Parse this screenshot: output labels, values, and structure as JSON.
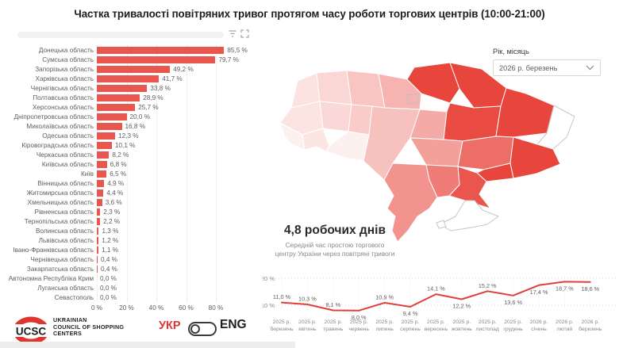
{
  "title": "Частка тривалості повітряних тривог протягом часу роботи торгових центрів (10:00-21:00)",
  "colors": {
    "bar": "#e8564e",
    "map_max": "#e8463d",
    "line": "#e04038",
    "accent_red": "#e0342e",
    "text_gray": "#605e5c"
  },
  "icons": {
    "filter": "filter-icon",
    "focus_mode": "focus-mode-icon",
    "dropdown_chevron": "chevron-down-icon"
  },
  "slicer": {
    "label": "Рік, місяць",
    "value": "2026 р. березень"
  },
  "bar_chart": {
    "x_ticks": [
      "0 %",
      "20 %",
      "40 %",
      "60 %",
      "80 %"
    ],
    "items": [
      {
        "key": "donetsk",
        "label": "Донецька область",
        "value": 85.5,
        "display": "85,5 %"
      },
      {
        "key": "sumy",
        "label": "Сумська область",
        "value": 79.7,
        "display": "79,7 %"
      },
      {
        "key": "zaporizhzhia",
        "label": "Запорізька область",
        "value": 49.2,
        "display": "49,2 %"
      },
      {
        "key": "kharkiv",
        "label": "Харківська область",
        "value": 41.7,
        "display": "41,7 %"
      },
      {
        "key": "chernihiv",
        "label": "Чернігівська область",
        "value": 33.8,
        "display": "33,8 %"
      },
      {
        "key": "poltava",
        "label": "Полтавська область",
        "value": 28.9,
        "display": "28,9 %"
      },
      {
        "key": "kherson",
        "label": "Херсонська область",
        "value": 25.7,
        "display": "25,7 %"
      },
      {
        "key": "dnipro",
        "label": "Дніпропетровська область",
        "value": 20.0,
        "display": "20,0 %"
      },
      {
        "key": "mykolaiv",
        "label": "Миколаївська область",
        "value": 16.8,
        "display": "16,8 %"
      },
      {
        "key": "odesa",
        "label": "Одеська область",
        "value": 12.3,
        "display": "12,3 %"
      },
      {
        "key": "kirovohrad",
        "label": "Кіровоградська область",
        "value": 10.1,
        "display": "10,1 %"
      },
      {
        "key": "cherkasy",
        "label": "Черкаська область",
        "value": 8.2,
        "display": "8,2 %"
      },
      {
        "key": "kyivobl",
        "label": "Київська область",
        "value": 6.8,
        "display": "6,8 %"
      },
      {
        "key": "kyiv",
        "label": "Київ",
        "value": 6.5,
        "display": "6,5 %"
      },
      {
        "key": "vinnytsia",
        "label": "Вінницька область",
        "value": 4.9,
        "display": "4,9 %"
      },
      {
        "key": "zhytomyr",
        "label": "Житомирська область",
        "value": 4.4,
        "display": "4,4 %"
      },
      {
        "key": "khmelnytskyi",
        "label": "Хмельницька область",
        "value": 3.6,
        "display": "3,6 %"
      },
      {
        "key": "rivne",
        "label": "Рівненська область",
        "value": 2.3,
        "display": "2,3 %"
      },
      {
        "key": "ternopil",
        "label": "Тернопільська область",
        "value": 2.2,
        "display": "2,2 %"
      },
      {
        "key": "volyn",
        "label": "Волинська область",
        "value": 1.3,
        "display": "1,3 %"
      },
      {
        "key": "lviv",
        "label": "Львівська область",
        "value": 1.2,
        "display": "1,2 %"
      },
      {
        "key": "ivanofrankivsk",
        "label": "Івано-Франківська область",
        "value": 1.1,
        "display": "1,1 %"
      },
      {
        "key": "chernivtsi",
        "label": "Чернівецька область",
        "value": 0.4,
        "display": "0,4 %"
      },
      {
        "key": "zakarpattia",
        "label": "Закарпатська область",
        "value": 0.4,
        "display": "0,4 %"
      },
      {
        "key": "crimea",
        "label": "Автономна Республіка Крим",
        "value": 0.0,
        "display": "0,0 %"
      },
      {
        "key": "luhansk",
        "label": "Луганська область",
        "value": 0.0,
        "display": "0,0 %"
      },
      {
        "key": "sevastopol",
        "label": "Севастополь",
        "value": 0.0,
        "display": "0,0 %"
      }
    ]
  },
  "map_note": {
    "headline": "4,8 робочих днів",
    "line1": "Середній час простою торгового",
    "line2": "центру України через повітряні тривоги"
  },
  "line_chart": {
    "y_ticks": [
      "20 %",
      "10 %"
    ],
    "points": [
      {
        "year": "2025 р.",
        "month": "березень",
        "value": 11.0,
        "display": "11,0 %",
        "label_pos": "above"
      },
      {
        "year": "2025 р.",
        "month": "квітень",
        "value": 10.3,
        "display": "10,3 %",
        "label_pos": "above"
      },
      {
        "year": "2025 р.",
        "month": "травень",
        "value": 8.1,
        "display": "8,1 %",
        "label_pos": "above"
      },
      {
        "year": "2025 р.",
        "month": "червень",
        "value": 8.0,
        "display": "8,0 %",
        "label_pos": "below"
      },
      {
        "year": "2025 р.",
        "month": "липень",
        "value": 10.9,
        "display": "10,9 %",
        "label_pos": "above"
      },
      {
        "year": "2025 р.",
        "month": "серпень",
        "value": 9.4,
        "display": "9,4 %",
        "label_pos": "below"
      },
      {
        "year": "2025 р.",
        "month": "вересень",
        "value": 14.1,
        "display": "14,1 %",
        "label_pos": "above"
      },
      {
        "year": "2025 р.",
        "month": "жовтень",
        "value": 12.2,
        "display": "12,2 %",
        "label_pos": "below"
      },
      {
        "year": "2025 р.",
        "month": "листопад",
        "value": 15.2,
        "display": "15,2 %",
        "label_pos": "above"
      },
      {
        "year": "2025 р.",
        "month": "грудень",
        "value": 13.6,
        "display": "13,6 %",
        "label_pos": "below"
      },
      {
        "year": "2026 р.",
        "month": "січень",
        "value": 17.4,
        "display": "17,4 %",
        "label_pos": "below"
      },
      {
        "year": "2026 р.",
        "month": "лютий",
        "value": 18.7,
        "display": "18,7 %",
        "label_pos": "below"
      },
      {
        "year": "2026 р.",
        "month": "березень",
        "value": 18.6,
        "display": "18,6 %",
        "label_pos": "below"
      }
    ]
  },
  "footer": {
    "logo_abbr": "UCSC",
    "logo_lines": [
      "UKRAINIAN",
      "COUNCIL OF SHOPPING",
      "CENTERS"
    ],
    "lang_ukr": "УКР",
    "lang_eng": "ENG"
  },
  "chart_data": [
    {
      "type": "bar",
      "orientation": "horizontal",
      "title": "Частка тривалості повітряних тривог протягом часу роботи торгових центрів (10:00-21:00)",
      "categories": [
        "Донецька область",
        "Сумська область",
        "Запорізька область",
        "Харківська область",
        "Чернігівська область",
        "Полтавська область",
        "Херсонська область",
        "Дніпропетровська область",
        "Миколаївська область",
        "Одеська область",
        "Кіровоградська область",
        "Черкаська область",
        "Київська область",
        "Київ",
        "Вінницька область",
        "Житомирська область",
        "Хмельницька область",
        "Рівненська область",
        "Тернопільська область",
        "Волинська область",
        "Львівська область",
        "Івано-Франківська область",
        "Чернівецька область",
        "Закарпатська область",
        "Автономна Республіка Крим",
        "Луганська область",
        "Севастополь"
      ],
      "values": [
        85.5,
        79.7,
        49.2,
        41.7,
        33.8,
        28.9,
        25.7,
        20.0,
        16.8,
        12.3,
        10.1,
        8.2,
        6.8,
        6.5,
        4.9,
        4.4,
        3.6,
        2.3,
        2.2,
        1.3,
        1.2,
        1.1,
        0.4,
        0.4,
        0.0,
        0.0,
        0.0
      ],
      "unit": "%",
      "xlabel": "",
      "ylabel": "",
      "x_ticks": [
        0,
        20,
        40,
        60,
        80
      ],
      "xlim": [
        0,
        100
      ],
      "grid": "vertical-dotted"
    },
    {
      "type": "heatmap",
      "subtype": "choropleth-ukraine-oblasts",
      "regions": [
        "Донецька область",
        "Сумська область",
        "Запорізька область",
        "Харківська область",
        "Чернігівська область",
        "Полтавська область",
        "Херсонська область",
        "Дніпропетровська область",
        "Миколаївська область",
        "Одеська область",
        "Кіровоградська область",
        "Черкаська область",
        "Київська область",
        "Київ",
        "Вінницька область",
        "Житомирська область",
        "Хмельницька область",
        "Рівненська область",
        "Тернопільська область",
        "Волинська область",
        "Львівська область",
        "Івано-Франківська область",
        "Чернівецька область",
        "Закарпатська область",
        "Автономна Республіка Крим",
        "Луганська область",
        "Севастополь"
      ],
      "values": [
        85.5,
        79.7,
        49.2,
        41.7,
        33.8,
        28.9,
        25.7,
        20.0,
        16.8,
        12.3,
        10.1,
        8.2,
        6.8,
        6.5,
        4.9,
        4.4,
        3.6,
        2.3,
        2.2,
        1.3,
        1.2,
        1.1,
        0.4,
        0.4,
        0.0,
        0.0,
        0.0
      ],
      "unit": "%",
      "note": "4,8 робочих днів — Середній час простою торгового центру України через повітряні тривоги",
      "slicer": "Рік, місяць: 2026 р. березень"
    },
    {
      "type": "line",
      "x": [
        "2025 р. березень",
        "2025 р. квітень",
        "2025 р. травень",
        "2025 р. червень",
        "2025 р. липень",
        "2025 р. серпень",
        "2025 р. вересень",
        "2025 р. жовтень",
        "2025 р. листопад",
        "2025 р. грудень",
        "2026 р. січень",
        "2026 р. лютий",
        "2026 р. березень"
      ],
      "values": [
        11.0,
        10.3,
        8.1,
        8.0,
        10.9,
        9.4,
        14.1,
        12.2,
        15.2,
        13.6,
        17.4,
        18.7,
        18.6
      ],
      "unit": "%",
      "y_ticks": [
        10,
        20
      ],
      "ylim": [
        5,
        22
      ],
      "grid": "dotted",
      "legend": "none"
    }
  ]
}
